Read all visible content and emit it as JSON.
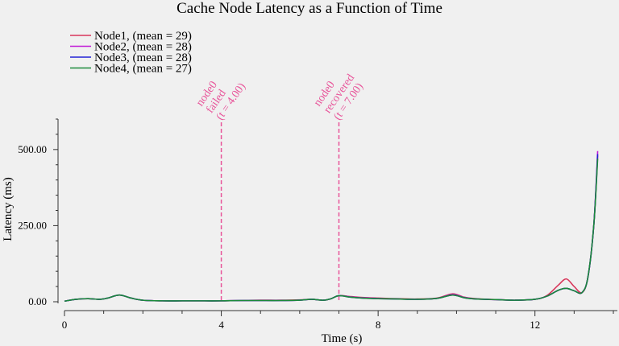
{
  "chart_data": {
    "type": "line",
    "title": "Cache Node Latency as a Function of Time",
    "xlabel": "Time (s)",
    "ylabel": "Latency (ms)",
    "xlim": [
      0,
      14
    ],
    "ylim": [
      0,
      600
    ],
    "xticks": [
      0,
      4,
      8,
      12
    ],
    "xtick_labels": [
      "0",
      "4",
      "8",
      "12"
    ],
    "yticks": [
      0,
      250,
      500
    ],
    "ytick_labels": [
      "0.00",
      "250.00",
      "500.00"
    ],
    "legend_position": "top-left",
    "grid": false,
    "x": [
      0,
      0.3,
      0.6,
      0.9,
      1.1,
      1.4,
      1.7,
      2,
      2.5,
      3,
      3.5,
      4,
      4.5,
      5,
      5.5,
      6,
      6.3,
      6.6,
      6.8,
      7,
      7.3,
      7.6,
      8,
      8.5,
      9,
      9.5,
      9.9,
      10.2,
      10.5,
      11,
      11.5,
      12,
      12.3,
      12.6,
      12.8,
      13,
      13.2,
      13.35,
      13.5,
      13.6
    ],
    "series": [
      {
        "name": "Node1, (mean = 29)",
        "color": "#d8365a",
        "values": [
          2,
          8,
          10,
          8,
          12,
          22,
          12,
          5,
          3,
          3,
          3,
          3,
          4,
          5,
          5,
          6,
          8,
          5,
          10,
          20,
          17,
          14,
          12,
          10,
          9,
          12,
          26,
          15,
          10,
          7,
          5,
          8,
          20,
          55,
          75,
          50,
          30,
          80,
          250,
          480
        ]
      },
      {
        "name": "Node2, (mean = 28)",
        "color": "#c21ad6",
        "values": [
          2,
          8,
          10,
          8,
          12,
          22,
          12,
          5,
          3,
          3,
          3,
          3,
          4,
          4,
          4,
          5,
          8,
          5,
          10,
          20,
          16,
          13,
          11,
          9,
          8,
          11,
          24,
          14,
          9,
          7,
          5,
          8,
          18,
          38,
          44,
          36,
          30,
          80,
          250,
          495
        ]
      },
      {
        "name": "Node3, (mean = 28)",
        "color": "#2222d6",
        "values": [
          2,
          8,
          10,
          8,
          12,
          22,
          12,
          5,
          3,
          3,
          3,
          3,
          4,
          4,
          4,
          5,
          8,
          5,
          10,
          20,
          15,
          12,
          10,
          9,
          8,
          11,
          22,
          13,
          9,
          7,
          5,
          8,
          18,
          38,
          44,
          36,
          30,
          80,
          250,
          485
        ]
      },
      {
        "name": "Node4, (mean = 27)",
        "color": "#1a8a3a",
        "values": [
          2,
          8,
          10,
          8,
          12,
          22,
          12,
          5,
          3,
          3,
          3,
          3,
          4,
          4,
          4,
          5,
          8,
          5,
          10,
          20,
          15,
          12,
          10,
          9,
          8,
          11,
          22,
          13,
          9,
          7,
          5,
          8,
          18,
          38,
          44,
          36,
          30,
          80,
          250,
          470
        ]
      }
    ],
    "annotations": [
      {
        "x": 4,
        "lines": [
          "node0",
          "failed",
          "(t = 4.00)"
        ],
        "color": "#e8559a"
      },
      {
        "x": 7,
        "lines": [
          "node0",
          "recovered",
          "(t = 7.00)"
        ],
        "color": "#e8559a"
      }
    ]
  }
}
